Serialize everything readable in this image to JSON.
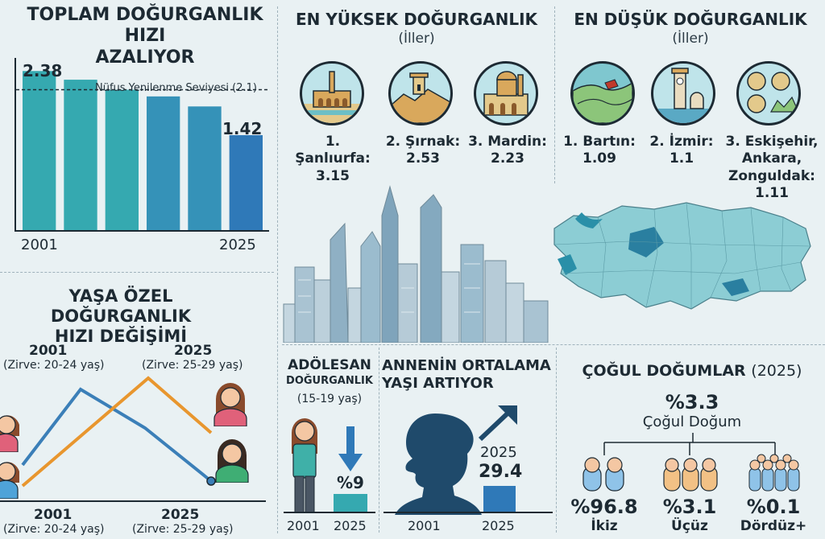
{
  "fertility": {
    "title_line1": "TOPLAM DOĞURGANLIK HIZI",
    "title_line2": "AZALIYOR",
    "reference_label": "Nüfus Yenilenme Seviyesi (2.1)",
    "start_label": "2.38",
    "end_label": "1.42",
    "x_start": "2001",
    "x_end": "2025",
    "colors": {
      "bar_teal": "#35a9b0",
      "bar_blue": "#2f79b8"
    }
  },
  "chart_data": {
    "type": "bar",
    "categories": [
      "2001",
      "",
      "",
      "",
      "",
      "2025"
    ],
    "values": [
      2.38,
      2.25,
      2.1,
      2.0,
      1.85,
      1.42
    ],
    "reference_line": {
      "label": "Nüfus Yenilenme Seviyesi (2.1)",
      "value": 2.1
    },
    "ylim": [
      0,
      2.6
    ]
  },
  "highest": {
    "title": "EN YÜKSEK DOĞURGANLIK",
    "subtitle": "(İller)",
    "items": [
      {
        "name": "1. Şanlıurfa:",
        "value": "3.15",
        "icon": "sanliurfa-icon"
      },
      {
        "name": "2. Şırnak:",
        "value": "2.53",
        "icon": "sirnak-icon"
      },
      {
        "name": "3. Mardin:",
        "value": "2.23",
        "icon": "mardin-icon"
      }
    ]
  },
  "lowest": {
    "title": "EN DÜŞÜK DOĞURGANLIK",
    "subtitle": "(İller)",
    "items": [
      {
        "name": "1. Bartın:",
        "value": "1.09",
        "icon": "bartin-icon"
      },
      {
        "name": "2. İzmir:",
        "value": "1.1",
        "icon": "izmir-icon"
      },
      {
        "name": "3. Eskişehir,",
        "name2": "Ankara,",
        "name3": "Zonguldak:",
        "value": "1.11",
        "icon": "eskisehir-icon"
      }
    ]
  },
  "age_specific": {
    "title_line1": "YAŞA ÖZEL DOĞURGANLIK",
    "title_line2": "HIZI DEĞİŞİMİ",
    "top_left_year": "2001",
    "top_left_peak": "(Zirve: 20-24 yaş)",
    "top_right_year": "2025",
    "top_right_peak": "(Zirve: 25-29 yaş)",
    "bottom_left_year": "2001",
    "bottom_left_peak": "(Zirve: 20-24 yaş)",
    "bottom_right_year": "2025",
    "bottom_right_peak": "(Zirve: 25-29 yaş)",
    "colors": {
      "line_2001": "#3b7fb8",
      "line_2025": "#e8962e"
    }
  },
  "adolescent": {
    "title": "ADÖLESAN",
    "subtitle": "DOĞURGANLIK",
    "age": "(15-19 yaş)",
    "value": "%9",
    "x_start": "2001",
    "x_end": "2025"
  },
  "mother_age": {
    "title_line1": "ANNENİN ORTALAMA",
    "title_line2": "YAŞI ARTIYOR",
    "year_end": "2025",
    "value": "29.4",
    "x_start": "2001",
    "x_end": "2025"
  },
  "multiple": {
    "title": "ÇOĞUL DOĞUMLAR",
    "title_year": "(2025)",
    "total_value": "%3.3",
    "total_label": "Çoğul Doğum",
    "items": [
      {
        "value": "%96.8",
        "label": "İkiz"
      },
      {
        "value": "%3.1",
        "label": "Üçüz"
      },
      {
        "value": "%0.1",
        "label": "Dördüz+"
      }
    ]
  }
}
